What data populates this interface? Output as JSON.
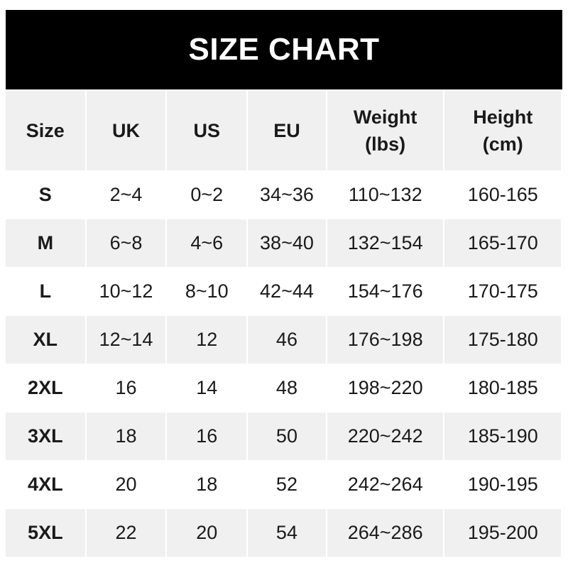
{
  "title": "SIZE CHART",
  "headers": [
    {
      "line1": "Size",
      "line2": ""
    },
    {
      "line1": "UK",
      "line2": ""
    },
    {
      "line1": "US",
      "line2": ""
    },
    {
      "line1": "EU",
      "line2": ""
    },
    {
      "line1": "Weight",
      "line2": "(lbs)"
    },
    {
      "line1": "Height",
      "line2": "(cm)"
    }
  ],
  "rows": [
    [
      "S",
      "2~4",
      "0~2",
      "34~36",
      "110~132",
      "160-165"
    ],
    [
      "M",
      "6~8",
      "4~6",
      "38~40",
      "132~154",
      "165-170"
    ],
    [
      "L",
      "10~12",
      "8~10",
      "42~44",
      "154~176",
      "170-175"
    ],
    [
      "XL",
      "12~14",
      "12",
      "46",
      "176~198",
      "175-180"
    ],
    [
      "2XL",
      "16",
      "14",
      "48",
      "198~220",
      "180-185"
    ],
    [
      "3XL",
      "18",
      "16",
      "50",
      "220~242",
      "185-190"
    ],
    [
      "4XL",
      "20",
      "18",
      "52",
      "242~264",
      "190-195"
    ],
    [
      "5XL",
      "22",
      "20",
      "54",
      "264~286",
      "195-200"
    ]
  ],
  "colors": {
    "title_bg": "#000000",
    "stripe": "#f0f0f0",
    "text": "#1a1a1a"
  }
}
